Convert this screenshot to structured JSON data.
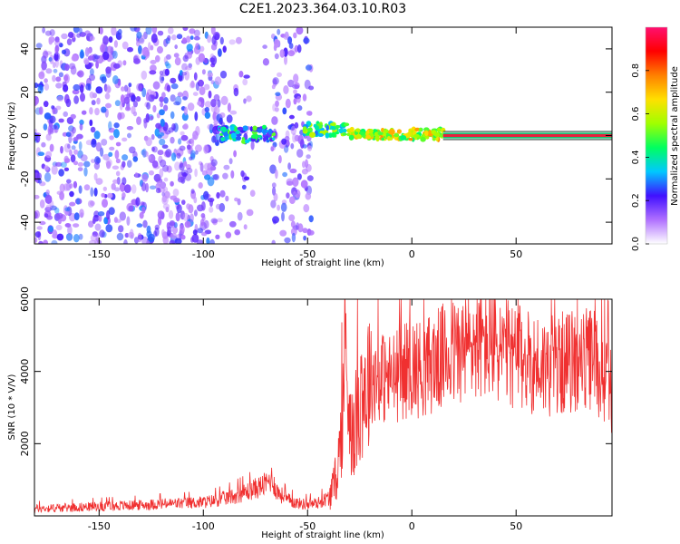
{
  "title": "C2E1.2023.364.03.10.R03",
  "colors": {
    "snr_line": "#f03030",
    "spectrogram_speckle": "#7a1cf0",
    "carrier_core": "#e8203c",
    "carrier_edge": "#18c070",
    "axis": "#000000"
  },
  "chart_data": [
    {
      "type": "heatmap",
      "title": "C2E1.2023.364.03.10.R03",
      "xlabel": "Height of straight line (km)",
      "ylabel": "Frequency (Hz)",
      "xlim": [
        -181,
        96
      ],
      "ylim": [
        -50,
        50
      ],
      "xticks": [
        -150,
        -100,
        -50,
        0,
        50
      ],
      "yticks": [
        -40,
        -20,
        0,
        20,
        40
      ],
      "colorbar": {
        "label": "Normalized spectral amplitude",
        "range": [
          0.0,
          1.0
        ],
        "ticks": [
          "0.0",
          "0.2",
          "0.4",
          "0.6",
          "0.8"
        ],
        "tick_values": [
          0.0,
          0.2,
          0.4,
          0.6,
          0.8
        ],
        "stops": [
          "#ffffff",
          "#b070ff",
          "#4010ff",
          "#00c8ff",
          "#00ff60",
          "#a0ff00",
          "#ffe000",
          "#ff8000",
          "#ff0000",
          "#ff1070"
        ]
      },
      "regions": [
        {
          "name": "noise",
          "x": [
            -181,
            -91
          ],
          "y": [
            -50,
            50
          ],
          "density": 1.0
        },
        {
          "name": "noise_faint",
          "x": [
            -91,
            -78
          ],
          "y": [
            -50,
            50
          ],
          "density": 0.35
        },
        {
          "name": "noise_gap",
          "x": [
            -78,
            -67
          ],
          "y": [
            -50,
            50
          ],
          "density": 0.05
        },
        {
          "name": "noise_strip",
          "x": [
            -67,
            -48
          ],
          "y": [
            -50,
            50
          ],
          "density": 0.8
        },
        {
          "name": "signal_blob",
          "x": [
            -93,
            -66
          ],
          "y": [
            -3,
            4
          ],
          "amplitude": 0.35
        },
        {
          "name": "signal_blob",
          "x": [
            -52,
            -30
          ],
          "y": [
            0,
            6
          ],
          "amplitude": 0.45
        },
        {
          "name": "signal_blob",
          "x": [
            -30,
            15
          ],
          "y": [
            -2,
            3
          ],
          "amplitude": 0.6
        },
        {
          "name": "carrier",
          "x": [
            15,
            96
          ],
          "y": [
            -1,
            1
          ],
          "amplitude": 0.95
        }
      ]
    },
    {
      "type": "line",
      "xlabel": "Height of straight line (km)",
      "ylabel": "SNR (10 * V/V)",
      "xlim": [
        -181,
        96
      ],
      "ylim": [
        0,
        6000
      ],
      "xticks": [
        -150,
        -100,
        -50,
        0,
        50
      ],
      "yticks": [
        2000,
        4000,
        6000
      ],
      "series": [
        {
          "x": [
            -181,
            -170,
            -160,
            -150,
            -140,
            -130,
            -120,
            -110,
            -100,
            -95,
            -90,
            -85,
            -80,
            -75,
            -70,
            -67,
            -65,
            -60,
            -55,
            -50,
            -45,
            -40,
            -37,
            -35,
            -33,
            -32,
            -30,
            -28,
            -25,
            -22,
            -20,
            -15,
            -10,
            -5,
            0,
            5,
            10,
            15,
            20,
            25,
            30,
            35,
            40,
            45,
            50,
            55,
            60,
            65,
            70,
            75,
            80,
            85,
            88,
            90,
            92,
            95,
            96
          ],
          "y": [
            200,
            220,
            240,
            260,
            280,
            300,
            330,
            350,
            380,
            420,
            480,
            560,
            650,
            760,
            880,
            1050,
            700,
            450,
            350,
            320,
            360,
            500,
            900,
            1600,
            3000,
            4600,
            3200,
            2000,
            3500,
            3600,
            3900,
            3850,
            3800,
            3950,
            4150,
            4050,
            4250,
            4400,
            4500,
            4600,
            4800,
            4750,
            4700,
            4500,
            4400,
            4300,
            4200,
            4150,
            4200,
            4250,
            4300,
            4300,
            4400,
            3900,
            3800,
            3600,
            3400
          ]
        }
      ]
    }
  ]
}
